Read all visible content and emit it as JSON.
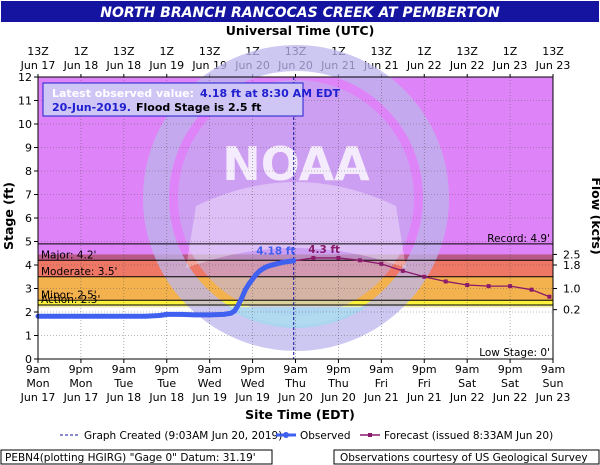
{
  "title": "NORTH BRANCH RANCOCAS CREEK AT PEMBERTON",
  "top_axis_title": "Universal Time (UTC)",
  "bottom_axis_title": "Site Time (EDT)",
  "left_axis_title": "Stage (ft)",
  "right_axis_title": "Flow (kcfs)",
  "latest_box": {
    "line1": "Latest observed value:",
    "line1_value": "4.18 ft at 8:30 AM EDT",
    "line2_date": "20-Jun-2019.",
    "line2_rest": "Flood Stage is 2.5 ft"
  },
  "watermark": "NOAA",
  "colors": {
    "title_bg": "#1414a0",
    "title_text": "#ffffff",
    "plot_bg": "#df84f8",
    "major": "#b85a85",
    "moderate": "#ee7766",
    "minor": "#f4b24e",
    "action": "#fff23d",
    "observed": "#4060f0",
    "forecast": "#8a1a6a",
    "watermark": "#bcb6ec",
    "watermark_lower": "#a8d6f0",
    "latest_box_text": "#2020d0",
    "latest_box_fill": "#cfc6f6"
  },
  "footer": {
    "left": "PEBN4(plotting HGIRG) \"Gage 0\" Datum: 31.19'",
    "right": "Observations courtesy of US Geological Survey"
  },
  "legend": {
    "created": "Graph Created (9:03AM Jun 20, 2019)",
    "observed": "Observed",
    "forecast": "Forecast (issued 8:33AM Jun 20)"
  },
  "chart_data": {
    "type": "line",
    "xlim": [
      0,
      144
    ],
    "ylim": [
      0,
      12
    ],
    "x_unit": "hours after 9am EDT Jun 17",
    "y_ticks": [
      "0",
      "1",
      "2",
      "3",
      "4",
      "5",
      "6",
      "7",
      "8",
      "9",
      "10",
      "11",
      "12"
    ],
    "flow_ticks": [
      {
        "stage": 4.45,
        "label": "2.5"
      },
      {
        "stage": 4.0,
        "label": "1.8"
      },
      {
        "stage": 3.0,
        "label": "1.0"
      },
      {
        "stage": 2.1,
        "label": "0.2"
      }
    ],
    "top_ticks": [
      {
        "x": 0,
        "l1": "13Z",
        "l2": "Jun 17"
      },
      {
        "x": 12,
        "l1": "1Z",
        "l2": "Jun 18"
      },
      {
        "x": 24,
        "l1": "13Z",
        "l2": "Jun 18"
      },
      {
        "x": 36,
        "l1": "1Z",
        "l2": "Jun 19"
      },
      {
        "x": 48,
        "l1": "13Z",
        "l2": "Jun 19"
      },
      {
        "x": 60,
        "l1": "1Z",
        "l2": "Jun 20"
      },
      {
        "x": 72,
        "l1": "13Z",
        "l2": "Jun 20"
      },
      {
        "x": 84,
        "l1": "1Z",
        "l2": "Jun 21"
      },
      {
        "x": 96,
        "l1": "13Z",
        "l2": "Jun 21"
      },
      {
        "x": 108,
        "l1": "1Z",
        "l2": "Jun 22"
      },
      {
        "x": 120,
        "l1": "13Z",
        "l2": "Jun 22"
      },
      {
        "x": 132,
        "l1": "1Z",
        "l2": "Jun 23"
      },
      {
        "x": 144,
        "l1": "13Z",
        "l2": "Jun 23"
      }
    ],
    "bottom_ticks": [
      {
        "x": 0,
        "l1": "9am",
        "l2": "Mon",
        "l3": "Jun 17"
      },
      {
        "x": 12,
        "l1": "9pm",
        "l2": "Mon",
        "l3": "Jun 17"
      },
      {
        "x": 24,
        "l1": "9am",
        "l2": "Tue",
        "l3": "Jun 18"
      },
      {
        "x": 36,
        "l1": "9pm",
        "l2": "Tue",
        "l3": "Jun 18"
      },
      {
        "x": 48,
        "l1": "9am",
        "l2": "Wed",
        "l3": "Jun 19"
      },
      {
        "x": 60,
        "l1": "9pm",
        "l2": "Wed",
        "l3": "Jun 19"
      },
      {
        "x": 72,
        "l1": "9am",
        "l2": "Thu",
        "l3": "Jun 20"
      },
      {
        "x": 84,
        "l1": "9pm",
        "l2": "Thu",
        "l3": "Jun 20"
      },
      {
        "x": 96,
        "l1": "9am",
        "l2": "Fri",
        "l3": "Jun 21"
      },
      {
        "x": 108,
        "l1": "9pm",
        "l2": "Fri",
        "l3": "Jun 21"
      },
      {
        "x": 120,
        "l1": "9am",
        "l2": "Sat",
        "l3": "Jun 22"
      },
      {
        "x": 132,
        "l1": "9pm",
        "l2": "Sat",
        "l3": "Jun 22"
      },
      {
        "x": 144,
        "l1": "9am",
        "l2": "Sun",
        "l3": "Jun 23"
      }
    ],
    "bands": [
      {
        "name": "Major",
        "from": 4.2,
        "to": 12,
        "color_key": "plot_bg"
      },
      {
        "name": "Major band",
        "from": 4.2,
        "to": 4.2,
        "color_key": "major"
      },
      {
        "name": "Moderate",
        "from": 3.5,
        "to": 4.2,
        "color_key": "moderate"
      },
      {
        "name": "Minor",
        "from": 2.5,
        "to": 3.5,
        "color_key": "minor"
      },
      {
        "name": "Action",
        "from": 2.3,
        "to": 2.5,
        "color_key": "action"
      }
    ],
    "stage_lines": [
      {
        "label": "Major: 4.2'",
        "y": 4.2
      },
      {
        "label": "Moderate: 3.5'",
        "y": 3.5
      },
      {
        "label": "Minor: 2.5'",
        "y": 2.5
      },
      {
        "label": "Action: 2.3'",
        "y": 2.3
      }
    ],
    "record": {
      "label": "Record: 4.9'",
      "y": 4.9
    },
    "low_stage": {
      "label": "Low Stage: 0'",
      "y": 0
    },
    "created_x": 71.5,
    "observed": {
      "name": "Observed",
      "x": [
        0,
        6,
        12,
        18,
        24,
        30,
        34,
        36,
        40,
        44,
        48,
        52,
        54,
        55,
        56,
        57,
        58,
        59,
        60,
        61,
        62,
        63,
        64,
        65,
        66,
        67,
        68,
        69,
        70,
        71,
        71.5
      ],
      "y": [
        1.82,
        1.82,
        1.82,
        1.82,
        1.82,
        1.82,
        1.85,
        1.9,
        1.9,
        1.88,
        1.88,
        1.9,
        1.95,
        2.05,
        2.3,
        2.6,
        2.95,
        3.2,
        3.4,
        3.6,
        3.75,
        3.85,
        3.93,
        3.98,
        4.02,
        4.06,
        4.1,
        4.13,
        4.15,
        4.17,
        4.18
      ]
    },
    "observed_label": "4.18 ft",
    "forecast": {
      "name": "Forecast",
      "x": [
        71.5,
        77,
        84,
        90,
        96,
        102,
        108,
        114,
        120,
        126,
        132,
        138,
        143
      ],
      "y": [
        4.18,
        4.3,
        4.3,
        4.2,
        4.05,
        3.75,
        3.5,
        3.3,
        3.15,
        3.1,
        3.1,
        2.95,
        2.65
      ]
    },
    "forecast_label": "4.3 ft"
  }
}
